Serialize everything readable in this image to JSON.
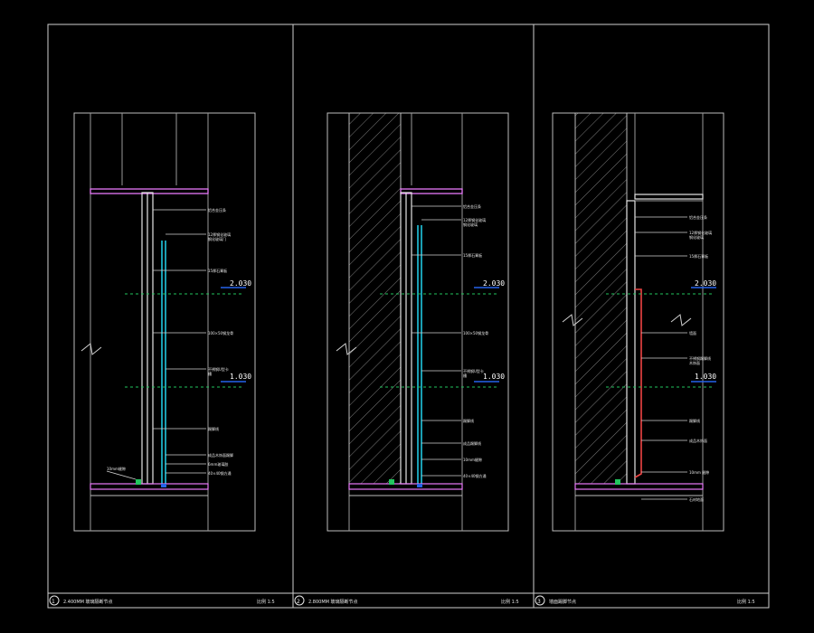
{
  "drawing": {
    "panels": [
      {
        "number": "1",
        "title": "2.400MM 玻璃隔断节点",
        "scale": "比例 1:5",
        "levels": [
          "2.030",
          "1.030"
        ],
        "callouts": [
          "铝合金压条",
          "12厚钢化玻璃\n钢化玻璃门",
          "15厚石膏板",
          "100×50钢龙骨",
          "不锈钢U型卡\n槽",
          "踢脚线",
          "成品木饰面踢脚",
          "6mm玻璃胶",
          "40×40钢方通"
        ],
        "left_note": "10mm缝隙"
      },
      {
        "number": "2",
        "title": "2.800MM 玻璃隔断节点",
        "scale": "比例 1:5",
        "levels": [
          "2.030",
          "1.030"
        ],
        "callouts": [
          "铝合金压条",
          "12厚钢化玻璃\n钢化玻璃",
          "15厚石膏板",
          "100×50钢龙骨",
          "不锈钢U型卡\n槽",
          "踢脚线",
          "成品踢脚线",
          "10mm缝隙",
          "40×40钢方通"
        ]
      },
      {
        "number": "3",
        "title": "墙面踢脚节点",
        "scale": "比例 1:5",
        "levels": [
          "2.030",
          "1.030"
        ],
        "callouts": [
          "铝合金压条",
          "12厚钢化玻璃\n钢化玻璃",
          "15厚石膏板",
          "墙面",
          "不锈钢踢脚线\n木饰面",
          "踢脚线",
          "成品木饰面",
          "10mm 缝隙",
          "石材地面"
        ]
      }
    ],
    "colors": {
      "frame": "#cfcfcf",
      "level_line": "#22c55e",
      "level_mark": "#2563eb",
      "glass": "#22d3ee",
      "ceiling": "#e879f9",
      "skirting_red": "#ef4444",
      "hatch": "#bdbdbd"
    }
  }
}
